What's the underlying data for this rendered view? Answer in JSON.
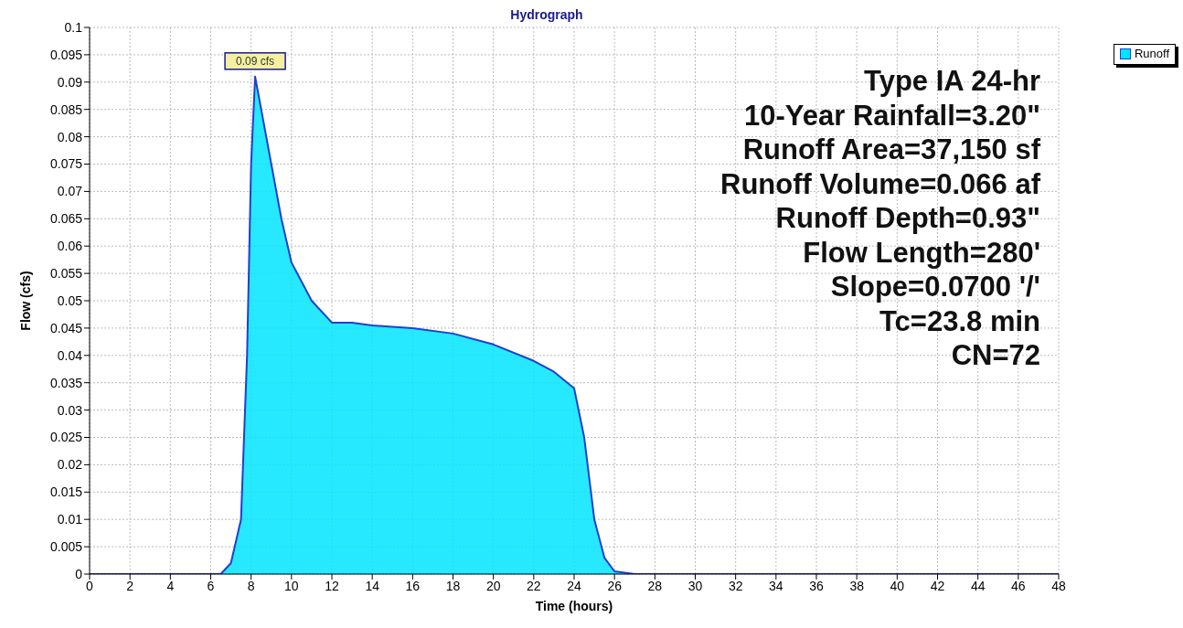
{
  "chart_data": {
    "type": "area",
    "title": "Hydrograph",
    "xlabel": "Time  (hours)",
    "ylabel": "Flow  (cfs)",
    "x": [
      0,
      6.5,
      7,
      7.5,
      7.8,
      8,
      8.2,
      8.5,
      9,
      9.5,
      10,
      11,
      12,
      13,
      14,
      16,
      18,
      20,
      22,
      23,
      24,
      24.5,
      25,
      25.5,
      26,
      27,
      48
    ],
    "series": [
      {
        "name": "Runoff",
        "color": "#00e5ff",
        "values": [
          0,
          0,
          0.002,
          0.01,
          0.04,
          0.075,
          0.091,
          0.085,
          0.075,
          0.065,
          0.057,
          0.05,
          0.046,
          0.046,
          0.0455,
          0.045,
          0.044,
          0.042,
          0.039,
          0.037,
          0.034,
          0.025,
          0.01,
          0.003,
          0.0005,
          0,
          0
        ]
      }
    ],
    "xlim": [
      0,
      48
    ],
    "xticks": [
      0,
      2,
      4,
      6,
      8,
      10,
      12,
      14,
      16,
      18,
      20,
      22,
      24,
      26,
      28,
      30,
      32,
      34,
      36,
      38,
      40,
      42,
      44,
      46,
      48
    ],
    "ylim": [
      0,
      0.1
    ],
    "yticks": [
      0,
      0.005,
      0.01,
      0.015,
      0.02,
      0.025,
      0.03,
      0.035,
      0.04,
      0.045,
      0.05,
      0.055,
      0.06,
      0.065,
      0.07,
      0.075,
      0.08,
      0.085,
      0.09,
      0.095,
      0.1
    ],
    "grid": true,
    "legend": "top right",
    "annotations": [
      {
        "text": "0.09 cfs",
        "x": 8.2,
        "y": 0.091
      },
      "Type IA 24-hr",
      "10-Year Rainfall=3.20\"",
      "Runoff Area=37,150 sf",
      "Runoff Volume=0.066 af",
      "Runoff Depth=0.93\"",
      "Flow Length=280'",
      "Slope=0.0700 '/'",
      "Tc=23.8 min",
      "CN=72"
    ]
  }
}
